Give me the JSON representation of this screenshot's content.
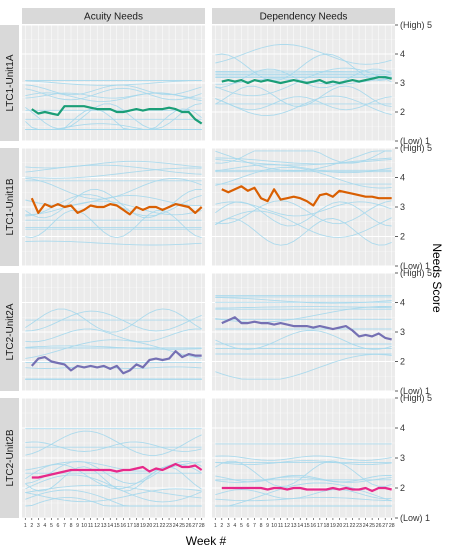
{
  "chart_data": {
    "type": "line",
    "facet_columns": [
      "Acuity Needs",
      "Dependency Needs"
    ],
    "facet_rows": [
      "LTC1-Unit1A",
      "LTC1-Unit1B",
      "LTC2-Unit2A",
      "LTC2-Unit2B"
    ],
    "xlabel": "Week #",
    "ylabel": "Needs Score",
    "x": [
      1,
      2,
      3,
      4,
      5,
      6,
      7,
      8,
      9,
      10,
      11,
      12,
      13,
      14,
      15,
      16,
      17,
      18,
      19,
      20,
      21,
      22,
      23,
      24,
      25,
      26,
      27,
      28
    ],
    "x_tick_labels": [
      "1",
      "2",
      "3",
      "4",
      "5",
      "6",
      "7",
      "8",
      "9",
      "10",
      "11",
      "12",
      "13",
      "14",
      "15",
      "16",
      "17",
      "18",
      "19",
      "20",
      "21",
      "22",
      "23",
      "24",
      "25",
      "26",
      "27",
      "28"
    ],
    "ylim": [
      1,
      5
    ],
    "y_ticks": [
      1,
      2,
      3,
      4,
      5
    ],
    "y_tick_labels": [
      "(Low) 1",
      "2",
      "3",
      "4",
      "(High) 5"
    ],
    "grid": true,
    "background_color": "#ebebeb",
    "strip_color": "#d9d9d9",
    "individual_line_color": "#a6d8ec",
    "panel_mean_colors": [
      "#1b9e77",
      "#d95f02",
      "#7570b3",
      "#e7298a"
    ],
    "panels": [
      {
        "row": "LTC1-Unit1A",
        "col": "Acuity Needs",
        "mean_series": {
          "x": [
            2,
            3,
            4,
            5,
            6,
            7,
            8,
            9,
            10,
            11,
            12,
            13,
            14,
            15,
            16,
            17,
            18,
            19,
            20,
            21,
            22,
            23,
            24,
            25,
            26,
            27,
            28
          ],
          "values": [
            2.1,
            1.95,
            2.0,
            1.95,
            1.9,
            2.2,
            2.2,
            2.2,
            2.2,
            2.15,
            2.1,
            2.1,
            2.1,
            2.0,
            2.0,
            2.05,
            2.1,
            2.05,
            2.1,
            2.1,
            2.1,
            2.15,
            2.1,
            2.0,
            2.0,
            1.75,
            1.6
          ]
        }
      },
      {
        "row": "LTC1-Unit1A",
        "col": "Dependency Needs",
        "mean_series": {
          "x": [
            2,
            3,
            4,
            5,
            6,
            7,
            8,
            9,
            10,
            11,
            12,
            13,
            14,
            15,
            16,
            17,
            18,
            19,
            20,
            21,
            22,
            23,
            24,
            25,
            26,
            27,
            28
          ],
          "values": [
            3.05,
            3.1,
            3.05,
            3.1,
            3.0,
            3.1,
            3.05,
            3.1,
            3.05,
            3.0,
            3.05,
            3.1,
            3.05,
            3.0,
            3.05,
            3.1,
            3.0,
            3.05,
            3.0,
            3.05,
            3.1,
            3.05,
            3.1,
            3.15,
            3.2,
            3.2,
            3.15
          ]
        }
      },
      {
        "row": "LTC1-Unit1B",
        "col": "Acuity Needs",
        "mean_series": {
          "x": [
            2,
            3,
            4,
            5,
            6,
            7,
            8,
            9,
            10,
            11,
            12,
            13,
            14,
            15,
            16,
            17,
            18,
            19,
            20,
            21,
            22,
            23,
            24,
            25,
            26,
            27,
            28
          ],
          "values": [
            3.3,
            2.8,
            3.1,
            3.0,
            3.1,
            3.0,
            3.05,
            2.8,
            2.9,
            3.05,
            3.0,
            3.0,
            3.1,
            3.05,
            2.9,
            2.75,
            3.0,
            2.9,
            3.0,
            3.0,
            2.9,
            3.0,
            3.1,
            3.05,
            3.0,
            2.8,
            3.0
          ]
        }
      },
      {
        "row": "LTC1-Unit1B",
        "col": "Dependency Needs",
        "mean_series": {
          "x": [
            2,
            3,
            4,
            5,
            6,
            7,
            8,
            9,
            10,
            11,
            12,
            13,
            14,
            15,
            16,
            17,
            18,
            19,
            20,
            21,
            22,
            23,
            24,
            25,
            26,
            27,
            28
          ],
          "values": [
            3.6,
            3.5,
            3.6,
            3.7,
            3.55,
            3.65,
            3.3,
            3.2,
            3.6,
            3.25,
            3.3,
            3.35,
            3.3,
            3.2,
            3.05,
            3.4,
            3.45,
            3.35,
            3.55,
            3.5,
            3.45,
            3.4,
            3.35,
            3.35,
            3.3,
            3.3,
            3.3
          ]
        }
      },
      {
        "row": "LTC2-Unit2A",
        "col": "Acuity Needs",
        "mean_series": {
          "x": [
            2,
            3,
            4,
            5,
            6,
            7,
            8,
            9,
            10,
            11,
            12,
            13,
            14,
            15,
            16,
            17,
            18,
            19,
            20,
            21,
            22,
            23,
            24,
            25,
            26,
            27,
            28
          ],
          "values": [
            1.85,
            2.1,
            2.15,
            2.0,
            1.95,
            1.9,
            1.7,
            1.85,
            1.8,
            1.85,
            1.8,
            1.85,
            1.75,
            1.85,
            1.6,
            1.7,
            1.9,
            1.8,
            2.05,
            2.1,
            2.05,
            2.1,
            2.35,
            2.15,
            2.25,
            2.2,
            2.2
          ]
        }
      },
      {
        "row": "LTC2-Unit2A",
        "col": "Dependency Needs",
        "mean_series": {
          "x": [
            2,
            3,
            4,
            5,
            6,
            7,
            8,
            9,
            10,
            11,
            12,
            13,
            14,
            15,
            16,
            17,
            18,
            19,
            20,
            21,
            22,
            23,
            24,
            25,
            26,
            27,
            28
          ],
          "values": [
            3.3,
            3.4,
            3.5,
            3.3,
            3.3,
            3.35,
            3.3,
            3.3,
            3.25,
            3.3,
            3.25,
            3.2,
            3.2,
            3.2,
            3.15,
            3.2,
            3.15,
            3.1,
            3.15,
            3.2,
            3.05,
            2.85,
            2.9,
            2.85,
            2.95,
            2.8,
            2.75
          ]
        }
      },
      {
        "row": "LTC2-Unit2B",
        "col": "Acuity Needs",
        "mean_series": {
          "x": [
            2,
            3,
            4,
            5,
            6,
            7,
            8,
            9,
            10,
            11,
            12,
            13,
            14,
            15,
            16,
            17,
            18,
            19,
            20,
            21,
            22,
            23,
            24,
            25,
            26,
            27,
            28
          ],
          "values": [
            2.35,
            2.35,
            2.4,
            2.45,
            2.5,
            2.55,
            2.6,
            2.6,
            2.6,
            2.6,
            2.6,
            2.6,
            2.6,
            2.55,
            2.6,
            2.6,
            2.65,
            2.7,
            2.55,
            2.65,
            2.6,
            2.7,
            2.8,
            2.7,
            2.7,
            2.75,
            2.6
          ]
        }
      },
      {
        "row": "LTC2-Unit2B",
        "col": "Dependency Needs",
        "mean_series": {
          "x": [
            2,
            3,
            4,
            5,
            6,
            7,
            8,
            9,
            10,
            11,
            12,
            13,
            14,
            15,
            16,
            17,
            18,
            19,
            20,
            21,
            22,
            23,
            24,
            25,
            26,
            27,
            28
          ],
          "values": [
            2.0,
            2.0,
            2.0,
            2.0,
            2.0,
            2.0,
            2.0,
            1.95,
            2.0,
            2.0,
            1.95,
            2.0,
            2.0,
            1.95,
            1.95,
            1.95,
            1.95,
            2.0,
            1.95,
            2.0,
            1.95,
            1.95,
            2.0,
            1.9,
            2.0,
            2.0,
            1.95
          ]
        }
      }
    ]
  }
}
